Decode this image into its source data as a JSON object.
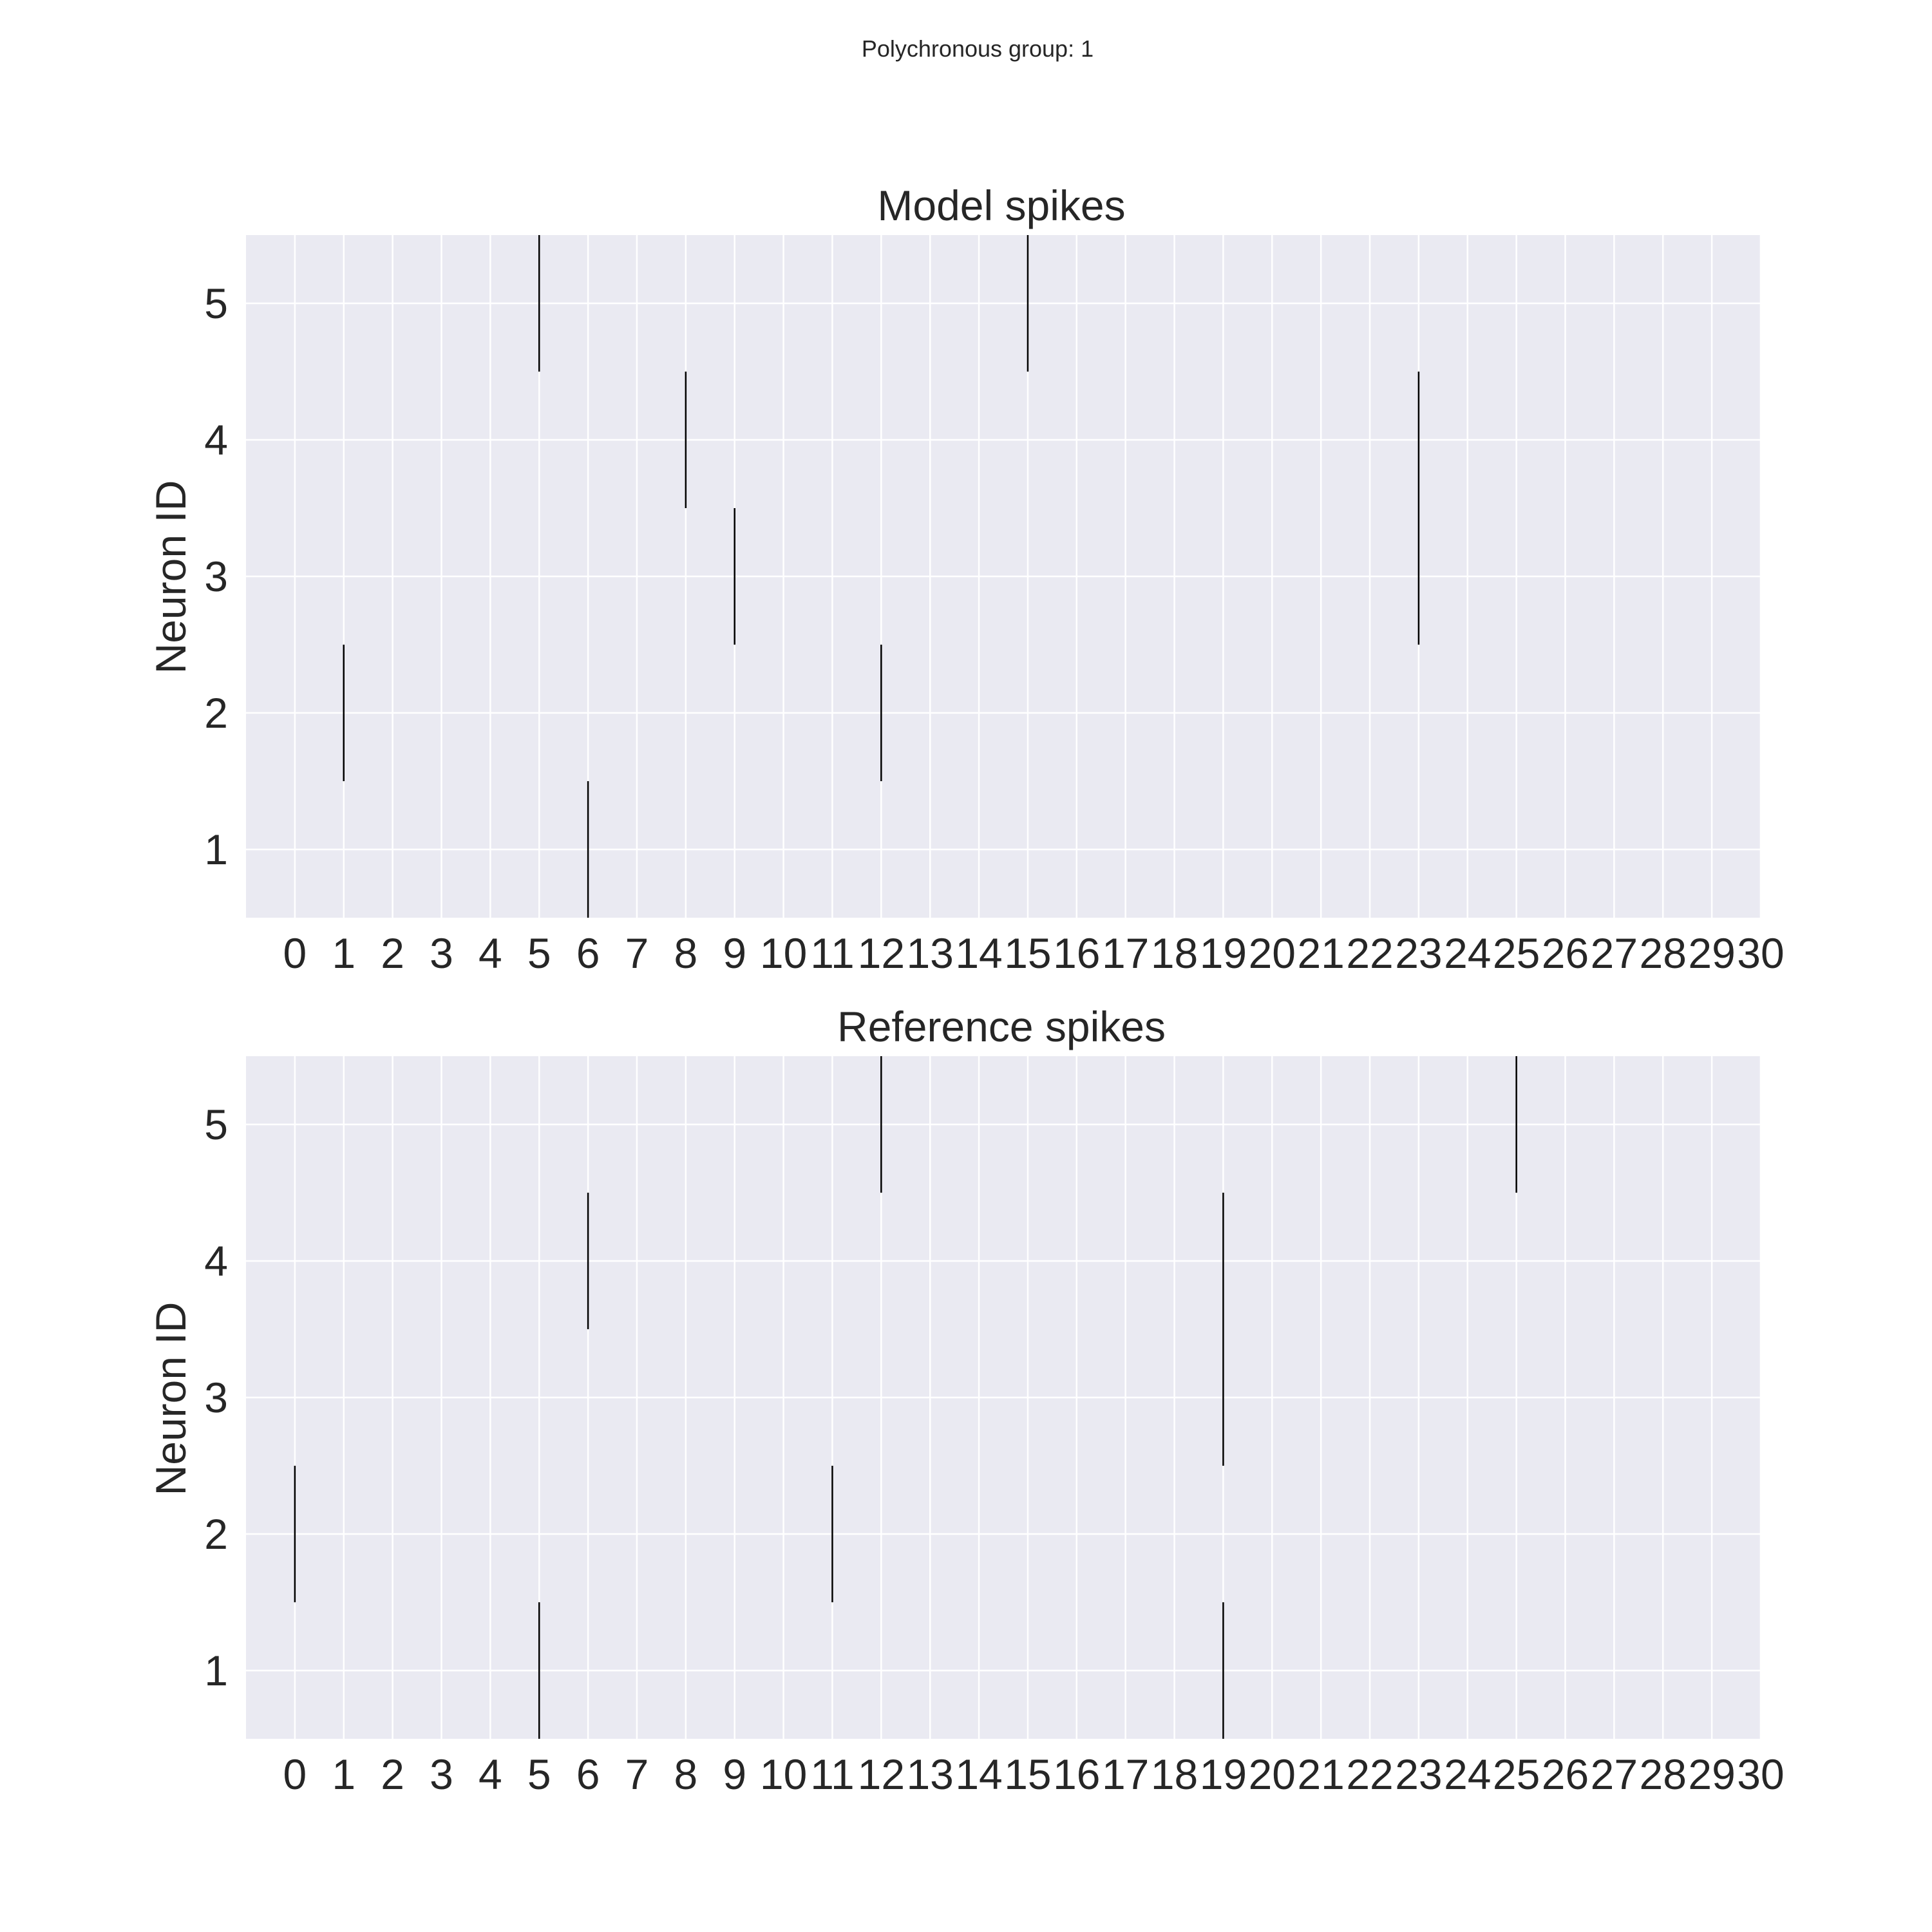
{
  "figure_title": "Polychronous group: 1",
  "colors": {
    "background": "#eaeaf2",
    "grid": "#ffffff",
    "spike": "#000000",
    "text": "#262626"
  },
  "chart_data": [
    {
      "type": "eventplot",
      "title": "Model spikes",
      "xlabel": "",
      "ylabel": "Neuron ID",
      "xticks": [
        0,
        1,
        2,
        3,
        4,
        5,
        6,
        7,
        8,
        9,
        10,
        11,
        12,
        13,
        14,
        15,
        16,
        17,
        18,
        19,
        20,
        21,
        22,
        23,
        24,
        25,
        26,
        27,
        28,
        29,
        30
      ],
      "yticks": [
        1,
        2,
        3,
        4,
        5
      ],
      "xlim": [
        -1,
        30
      ],
      "ylim": [
        0.5,
        5.5
      ],
      "grid": true,
      "events": [
        {
          "neuron": 1,
          "times": [
            6
          ]
        },
        {
          "neuron": 2,
          "times": [
            1,
            12
          ]
        },
        {
          "neuron": 3,
          "times": [
            9,
            23
          ]
        },
        {
          "neuron": 4,
          "times": [
            8,
            23
          ]
        },
        {
          "neuron": 5,
          "times": [
            5,
            15
          ]
        }
      ]
    },
    {
      "type": "eventplot",
      "title": "Reference spikes",
      "xlabel": "",
      "ylabel": "Neuron ID",
      "xticks": [
        0,
        1,
        2,
        3,
        4,
        5,
        6,
        7,
        8,
        9,
        10,
        11,
        12,
        13,
        14,
        15,
        16,
        17,
        18,
        19,
        20,
        21,
        22,
        23,
        24,
        25,
        26,
        27,
        28,
        29,
        30
      ],
      "yticks": [
        1,
        2,
        3,
        4,
        5
      ],
      "xlim": [
        -1,
        30
      ],
      "ylim": [
        0.5,
        5.5
      ],
      "grid": true,
      "events": [
        {
          "neuron": 1,
          "times": [
            5,
            19
          ]
        },
        {
          "neuron": 2,
          "times": [
            0,
            11
          ]
        },
        {
          "neuron": 3,
          "times": [
            19
          ]
        },
        {
          "neuron": 4,
          "times": [
            6,
            19
          ]
        },
        {
          "neuron": 5,
          "times": [
            12,
            25
          ]
        }
      ]
    }
  ]
}
